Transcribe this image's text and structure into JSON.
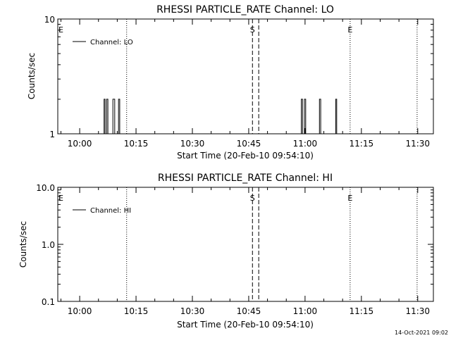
{
  "footer": {
    "timestamp": "14-Oct-2021 09:02"
  },
  "chart_data": [
    {
      "type": "line",
      "title": "RHESSI PARTICLE_RATE Channel: LO",
      "xlabel": "Start Time (20-Feb-10 09:54:10)",
      "ylabel": "Counts/sec",
      "yscale": "log",
      "ylim": [
        1,
        10
      ],
      "y_tick_labels": [
        "1",
        "10"
      ],
      "xlim": [
        "09:54:10",
        "11:34:10"
      ],
      "x_tick_labels": [
        "10:00",
        "10:15",
        "10:30",
        "10:45",
        "11:00",
        "11:15",
        "11:30"
      ],
      "grid": false,
      "legend": {
        "position": "top-left",
        "entries": [
          "Channel: LO"
        ]
      },
      "series": [
        {
          "name": "Channel: LO",
          "x": [
            "10:06:30",
            "10:06:30",
            "10:06:45",
            "10:06:45",
            "10:07:10",
            "10:07:10",
            "10:07:30",
            "10:07:30",
            "10:08:50",
            "10:08:50",
            "10:09:20",
            "10:09:20",
            "10:10:20",
            "10:10:20",
            "10:10:40",
            "10:10:40",
            "10:59:00",
            "10:59:00",
            "10:59:20",
            "10:59:20",
            "10:59:50",
            "10:59:50",
            "11:00:10",
            "11:00:10",
            "11:03:50",
            "11:03:50",
            "11:04:10",
            "11:04:10",
            "11:08:10",
            "11:08:10",
            "11:08:25",
            "11:08:25"
          ],
          "y": [
            1,
            2,
            2,
            1,
            1,
            2,
            2,
            1,
            1,
            2,
            2,
            1,
            1,
            2,
            2,
            1,
            1,
            2,
            2,
            1,
            1,
            2,
            2,
            1,
            1,
            2,
            2,
            1,
            1,
            2,
            2,
            1
          ]
        }
      ],
      "event_markers": [
        {
          "label": "E",
          "time": "09:54:10",
          "style": "dotted"
        },
        {
          "label": "",
          "time": "10:12:30",
          "style": "dotted"
        },
        {
          "label": "S",
          "time": "10:46:00",
          "style": "dashed"
        },
        {
          "label": "",
          "time": "10:47:40",
          "style": "dashed"
        },
        {
          "label": "E",
          "time": "11:12:00",
          "style": "dotted"
        },
        {
          "label": "",
          "time": "11:29:50",
          "style": "dotted"
        }
      ]
    },
    {
      "type": "line",
      "title": "RHESSI PARTICLE_RATE Channel: HI",
      "xlabel": "Start Time (20-Feb-10 09:54:10)",
      "ylabel": "Counts/sec",
      "yscale": "log",
      "ylim": [
        0.1,
        10
      ],
      "y_tick_labels": [
        "0.1",
        "1.0",
        "10.0"
      ],
      "xlim": [
        "09:54:10",
        "11:34:10"
      ],
      "x_tick_labels": [
        "10:00",
        "10:15",
        "10:30",
        "10:45",
        "11:00",
        "11:15",
        "11:30"
      ],
      "grid": false,
      "legend": {
        "position": "top-left",
        "entries": [
          "Channel: HI"
        ]
      },
      "series": [
        {
          "name": "Channel: HI",
          "x": [],
          "y": []
        }
      ],
      "event_markers": [
        {
          "label": "E",
          "time": "09:54:10",
          "style": "dotted"
        },
        {
          "label": "",
          "time": "10:12:30",
          "style": "dotted"
        },
        {
          "label": "S",
          "time": "10:46:00",
          "style": "dashed"
        },
        {
          "label": "",
          "time": "10:47:40",
          "style": "dashed"
        },
        {
          "label": "E",
          "time": "11:12:00",
          "style": "dotted"
        },
        {
          "label": "",
          "time": "11:29:50",
          "style": "dotted"
        }
      ]
    }
  ]
}
